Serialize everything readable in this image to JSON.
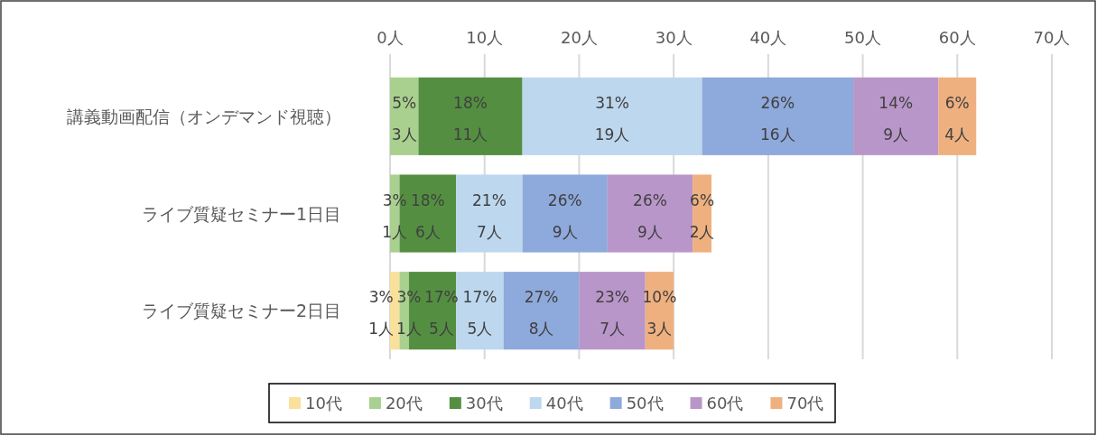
{
  "chart_data": {
    "type": "bar",
    "orientation": "horizontal",
    "stacked": true,
    "categories": [
      "講義動画配信（オンデマンド視聴）",
      "ライブ質疑セミナー1日目",
      "ライブ質疑セミナー2日目"
    ],
    "series": [
      {
        "name": "10代",
        "color": "#f9e09b",
        "values": [
          0,
          0,
          1
        ],
        "value_labels": [
          null,
          null,
          "3% 1人"
        ]
      },
      {
        "name": "20代",
        "color": "#a9d08e",
        "values": [
          3,
          1,
          1
        ],
        "value_labels": [
          "5% 3人",
          "3% 1人",
          "3% 1人"
        ]
      },
      {
        "name": "30代",
        "color": "#548f41",
        "values": [
          11,
          6,
          5
        ],
        "value_labels": [
          "18% 11人",
          "18% 6人",
          "17% 5人"
        ]
      },
      {
        "name": "40代",
        "color": "#bdd7ee",
        "values": [
          19,
          7,
          5
        ],
        "value_labels": [
          "31% 19人",
          "21% 7人",
          "17% 5人"
        ]
      },
      {
        "name": "50代",
        "color": "#8ea9db",
        "values": [
          16,
          9,
          8
        ],
        "value_labels": [
          "26% 16人",
          "26% 9人",
          "27% 8人"
        ]
      },
      {
        "name": "60代",
        "color": "#b996c9",
        "values": [
          9,
          9,
          7
        ],
        "value_labels": [
          "14% 9人",
          "26% 9人",
          "23% 7人"
        ]
      },
      {
        "name": "70代",
        "color": "#efb07f",
        "values": [
          4,
          2,
          3
        ],
        "value_labels": [
          "6% 4人",
          "6% 2人",
          "10% 3人"
        ]
      }
    ],
    "xlim": [
      0,
      70
    ],
    "xticks": [
      {
        "value": 0,
        "label": "0人"
      },
      {
        "value": 10,
        "label": "10人"
      },
      {
        "value": 20,
        "label": "20人"
      },
      {
        "value": 30,
        "label": "30人"
      },
      {
        "value": 40,
        "label": "40人"
      },
      {
        "value": 50,
        "label": "50人"
      },
      {
        "value": 60,
        "label": "60人"
      },
      {
        "value": 70,
        "label": "70人"
      }
    ],
    "grid": "x",
    "legend": "bottom"
  }
}
